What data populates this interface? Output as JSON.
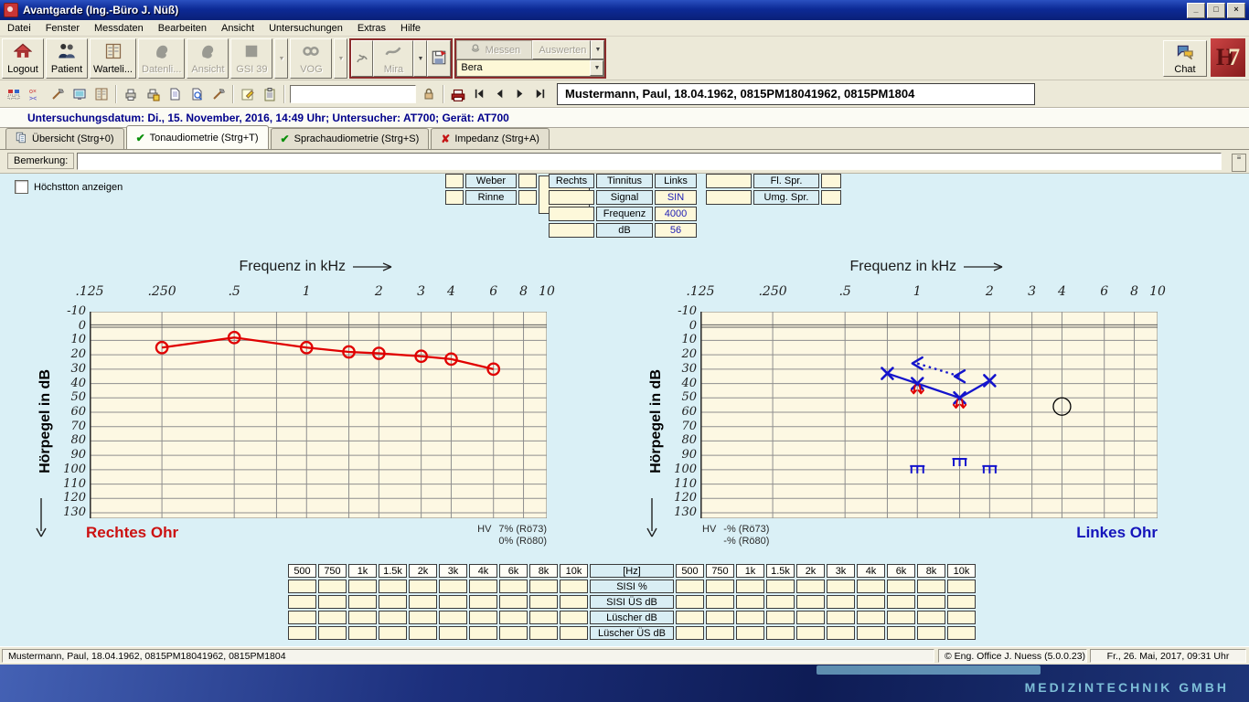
{
  "window": {
    "title": "Avantgarde (Ing.-Büro J. Nüß)"
  },
  "menu": [
    "Datei",
    "Fenster",
    "Messdaten",
    "Bearbeiten",
    "Ansicht",
    "Untersuchungen",
    "Extras",
    "Hilfe"
  ],
  "toolbar": {
    "buttons": {
      "logout": "Logout",
      "patient": "Patient",
      "warteliste": "Warteli...",
      "datenliste": "Datenli...",
      "ansicht": "Ansicht",
      "gsi39": "GSI 39",
      "vog": "VOG",
      "mira": "Mira",
      "messen": "Messen",
      "auswerten": "Auswerten",
      "chat": "Chat"
    },
    "bera_combo": "Bera",
    "logo": "H7"
  },
  "toolbar2": {
    "filter_value": ""
  },
  "patient_bar": {
    "text": "Mustermann, Paul, 18.04.1962, 0815PM18041962, 0815PM1804"
  },
  "exam_bar": {
    "text": "Untersuchungsdatum: Di., 15. November, 2016, 14:49 Uhr; Untersucher: AT700; Gerät: AT700"
  },
  "tabs": [
    {
      "label": "Übersicht (Strg+0)",
      "icon": "pages",
      "active": false
    },
    {
      "label": "Tonaudiometrie (Strg+T)",
      "icon": "check",
      "active": true
    },
    {
      "label": "Sprachaudiometrie (Strg+S)",
      "icon": "check",
      "active": false
    },
    {
      "label": "Impedanz (Strg+A)",
      "icon": "cross",
      "active": false
    }
  ],
  "remark": {
    "label": "Bemerkung:",
    "value": ""
  },
  "options": {
    "hoechstton_label": "Höchstton anzeigen",
    "hoechstton_checked": false
  },
  "weber_rinne": {
    "rows": [
      "Weber",
      "Rinne"
    ]
  },
  "tinnitus": {
    "headers": [
      "Rechts",
      "Tinnitus",
      "Links"
    ],
    "rows": [
      {
        "label": "Signal",
        "rechts": "",
        "links": "SIN"
      },
      {
        "label": "Frequenz",
        "rechts": "",
        "links": "4000"
      },
      {
        "label": "dB",
        "rechts": "",
        "links": "56"
      }
    ]
  },
  "speech": {
    "rows": [
      "Fl. Spr.",
      "Umg. Spr."
    ]
  },
  "chart_data": [
    {
      "type": "line",
      "title": "Frequenz in kHz",
      "xlabel": "Frequenz in kHz",
      "ylabel": "Hörpegel in dB",
      "ear_label": "Rechtes Ohr",
      "ear_color": "#cc1111",
      "xlim": [
        0.125,
        10
      ],
      "ylim": [
        -10,
        130
      ],
      "y_step": 10,
      "grid": true,
      "x_ticks": [
        {
          "f": 0.125,
          "label": ".125"
        },
        {
          "f": 0.25,
          "label": ".250"
        },
        {
          "f": 0.5,
          "label": ".5"
        },
        {
          "f": 1,
          "label": "1"
        },
        {
          "f": 2,
          "label": "2"
        },
        {
          "f": 3,
          "label": "3"
        },
        {
          "f": 4,
          "label": "4"
        },
        {
          "f": 6,
          "label": "6"
        },
        {
          "f": 8,
          "label": "8"
        },
        {
          "f": 10,
          "label": "10"
        }
      ],
      "series": [
        {
          "name": "Luftleitung rechts (O)",
          "symbol": "circle",
          "color": "#e00000",
          "line": "solid",
          "points": [
            [
              0.25,
              15
            ],
            [
              0.5,
              8
            ],
            [
              1,
              15
            ],
            [
              1.5,
              18
            ],
            [
              2,
              19
            ],
            [
              3,
              21
            ],
            [
              4,
              23
            ],
            [
              6,
              30
            ]
          ]
        }
      ],
      "hv": {
        "label": "HV",
        "values": [
          "7% (Rö73)",
          "0% (Rö80)"
        ],
        "align": "right"
      }
    },
    {
      "type": "line",
      "title": "Frequenz in kHz",
      "xlabel": "Frequenz in kHz",
      "ylabel": "Hörpegel in dB",
      "ear_label": "Linkes Ohr",
      "ear_color": "#1414bb",
      "xlim": [
        0.125,
        10
      ],
      "ylim": [
        -10,
        130
      ],
      "y_step": 10,
      "grid": true,
      "x_ticks": [
        {
          "f": 0.125,
          "label": ".125"
        },
        {
          "f": 0.25,
          "label": ".250"
        },
        {
          "f": 0.5,
          "label": ".5"
        },
        {
          "f": 1,
          "label": "1"
        },
        {
          "f": 2,
          "label": "2"
        },
        {
          "f": 3,
          "label": "3"
        },
        {
          "f": 4,
          "label": "4"
        },
        {
          "f": 6,
          "label": "6"
        },
        {
          "f": 8,
          "label": "8"
        },
        {
          "f": 10,
          "label": "10"
        }
      ],
      "series": [
        {
          "name": "Luftleitung links (X)",
          "symbol": "x",
          "color": "#1414cc",
          "line": "solid",
          "points": [
            [
              0.75,
              33
            ],
            [
              1,
              40
            ],
            [
              1.5,
              50
            ],
            [
              2,
              38
            ]
          ]
        },
        {
          "name": "Knochenleitung links (<)",
          "symbol": "less",
          "color": "#1414cc",
          "line": "dotted",
          "points": [
            [
              1,
              26
            ],
            [
              1.5,
              35
            ]
          ]
        },
        {
          "name": "Unbehaglichkeitsschwelle",
          "symbol": "ucl",
          "color": "#1414cc",
          "line": "none",
          "points": [
            [
              1,
              100
            ],
            [
              1.5,
              95
            ],
            [
              2,
              100
            ]
          ]
        },
        {
          "name": "Markierung rot",
          "symbol": "arrow-down-red",
          "color": "#e00000",
          "line": "none",
          "points": [
            [
              1,
              45
            ],
            [
              1.5,
              55
            ]
          ]
        },
        {
          "name": "Tinnitus-Abgleich",
          "symbol": "open-circle",
          "color": "#000000",
          "line": "none",
          "points": [
            [
              4,
              56
            ]
          ]
        }
      ],
      "hv": {
        "label": "HV",
        "values": [
          "-% (Rö73)",
          "-% (Rö80)"
        ],
        "align": "left"
      }
    }
  ],
  "bottom_table": {
    "freq_headers": [
      "500",
      "750",
      "1k",
      "1.5k",
      "2k",
      "3k",
      "4k",
      "6k",
      "8k",
      "10k"
    ],
    "center_header": "[Hz]",
    "row_labels": [
      "SISI %",
      "SISI ÜS dB",
      "Lüscher dB",
      "Lüscher ÜS dB"
    ]
  },
  "status_bar": {
    "left": "Mustermann, Paul, 18.04.1962, 0815PM18041962, 0815PM1804",
    "center": "© Eng. Office J. Nuess (5.0.0.23)",
    "right": "Fr., 26. Mai, 2017, 09:31 Uhr"
  },
  "wallpaper": {
    "watermark": "MEDIZINTECHNIK GMBH"
  }
}
